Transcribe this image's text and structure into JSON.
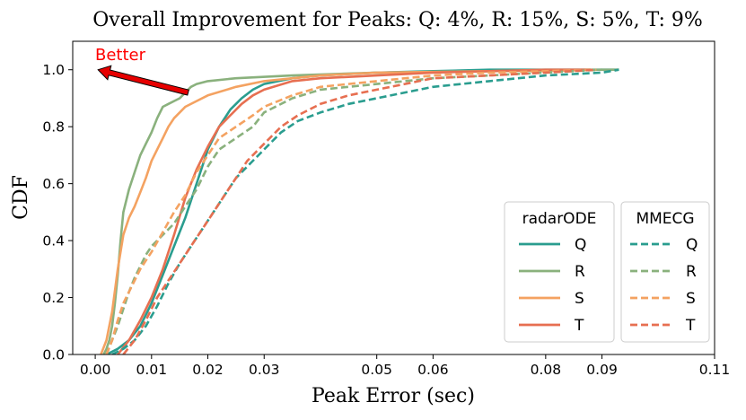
{
  "chart_data": {
    "type": "line",
    "title": "Overall Improvement for Peaks: Q: 4%, R: 15%, S: 5%, T: 9%",
    "xlabel": "Peak Error (sec)",
    "ylabel": "CDF",
    "xlim": [
      -0.004,
      0.11
    ],
    "ylim": [
      0.0,
      1.1
    ],
    "xticks": [
      0.0,
      0.01,
      0.02,
      0.03,
      0.05,
      0.06,
      0.08,
      0.09,
      0.11
    ],
    "xtick_labels": [
      "0.00",
      "0.01",
      "0.02",
      "0.03",
      "0.05",
      "0.06",
      "0.08",
      "0.09",
      "0.11"
    ],
    "yticks": [
      0.0,
      0.2,
      0.4,
      0.6,
      0.8,
      1.0
    ],
    "ytick_labels": [
      "0.0",
      "0.2",
      "0.4",
      "0.6",
      "0.8",
      "1.0"
    ],
    "grid": false,
    "annotation": {
      "text": "Better",
      "from": [
        0.0165,
        0.92
      ],
      "to": [
        0.0005,
        1.0
      ],
      "color": "#ff0000"
    },
    "legend_groups": [
      {
        "title": "radarODE",
        "style": "solid",
        "entries": [
          "Q",
          "R",
          "S",
          "T"
        ]
      },
      {
        "title": "MMECG",
        "style": "dashed",
        "entries": [
          "Q",
          "R",
          "S",
          "T"
        ]
      }
    ],
    "colors": {
      "Q": "#2a9d8f",
      "R": "#8ab17d",
      "S": "#f4a261",
      "T": "#e76f51"
    },
    "series": [
      {
        "name": "radarODE Q",
        "group": "radarODE",
        "peak": "Q",
        "dashed": false,
        "x": [
          0.002,
          0.004,
          0.006,
          0.008,
          0.01,
          0.012,
          0.014,
          0.016,
          0.018,
          0.02,
          0.022,
          0.024,
          0.026,
          0.028,
          0.03,
          0.035,
          0.04,
          0.05,
          0.06,
          0.07,
          0.08,
          0.093
        ],
        "y": [
          0.0,
          0.02,
          0.05,
          0.1,
          0.18,
          0.28,
          0.38,
          0.48,
          0.6,
          0.72,
          0.8,
          0.86,
          0.9,
          0.93,
          0.95,
          0.97,
          0.98,
          0.99,
          0.995,
          1.0,
          1.0,
          1.0
        ]
      },
      {
        "name": "radarODE R",
        "group": "radarODE",
        "peak": "R",
        "dashed": false,
        "x": [
          0.0015,
          0.002,
          0.0025,
          0.003,
          0.0035,
          0.004,
          0.0045,
          0.005,
          0.006,
          0.007,
          0.008,
          0.009,
          0.01,
          0.011,
          0.012,
          0.013,
          0.014,
          0.015,
          0.016,
          0.017,
          0.018,
          0.02,
          0.025,
          0.035,
          0.05,
          0.07,
          0.09,
          0.093
        ],
        "y": [
          0.0,
          0.02,
          0.05,
          0.1,
          0.18,
          0.28,
          0.4,
          0.5,
          0.58,
          0.64,
          0.7,
          0.74,
          0.78,
          0.83,
          0.87,
          0.88,
          0.89,
          0.9,
          0.92,
          0.94,
          0.95,
          0.96,
          0.97,
          0.98,
          0.99,
          0.995,
          1.0,
          1.0
        ]
      },
      {
        "name": "radarODE S",
        "group": "radarODE",
        "peak": "S",
        "dashed": false,
        "x": [
          0.001,
          0.002,
          0.003,
          0.004,
          0.005,
          0.006,
          0.007,
          0.008,
          0.009,
          0.01,
          0.011,
          0.012,
          0.013,
          0.014,
          0.015,
          0.016,
          0.018,
          0.02,
          0.025,
          0.03,
          0.04,
          0.05,
          0.07,
          0.088
        ],
        "y": [
          0.0,
          0.05,
          0.15,
          0.3,
          0.42,
          0.48,
          0.52,
          0.57,
          0.62,
          0.68,
          0.72,
          0.76,
          0.8,
          0.83,
          0.85,
          0.87,
          0.89,
          0.91,
          0.94,
          0.96,
          0.98,
          0.99,
          0.995,
          1.0
        ]
      },
      {
        "name": "radarODE T",
        "group": "radarODE",
        "peak": "T",
        "dashed": false,
        "x": [
          0.004,
          0.006,
          0.008,
          0.01,
          0.012,
          0.014,
          0.016,
          0.018,
          0.02,
          0.022,
          0.024,
          0.026,
          0.028,
          0.03,
          0.035,
          0.04,
          0.05,
          0.06,
          0.07,
          0.08,
          0.088
        ],
        "y": [
          0.0,
          0.05,
          0.12,
          0.2,
          0.3,
          0.42,
          0.55,
          0.65,
          0.73,
          0.8,
          0.84,
          0.88,
          0.91,
          0.93,
          0.96,
          0.97,
          0.98,
          0.99,
          0.995,
          1.0,
          1.0
        ]
      },
      {
        "name": "MMECG Q",
        "group": "MMECG",
        "peak": "Q",
        "dashed": true,
        "x": [
          0.003,
          0.005,
          0.007,
          0.009,
          0.011,
          0.013,
          0.015,
          0.017,
          0.019,
          0.021,
          0.023,
          0.025,
          0.027,
          0.03,
          0.033,
          0.036,
          0.04,
          0.045,
          0.05,
          0.055,
          0.06,
          0.07,
          0.08,
          0.09,
          0.093
        ],
        "y": [
          0.0,
          0.02,
          0.05,
          0.1,
          0.17,
          0.25,
          0.32,
          0.38,
          0.44,
          0.5,
          0.56,
          0.62,
          0.66,
          0.72,
          0.78,
          0.82,
          0.85,
          0.88,
          0.9,
          0.92,
          0.94,
          0.96,
          0.98,
          0.99,
          1.0
        ]
      },
      {
        "name": "MMECG R",
        "group": "MMECG",
        "peak": "R",
        "dashed": true,
        "x": [
          0.002,
          0.003,
          0.004,
          0.005,
          0.006,
          0.007,
          0.008,
          0.009,
          0.01,
          0.012,
          0.014,
          0.016,
          0.018,
          0.02,
          0.022,
          0.025,
          0.028,
          0.03,
          0.035,
          0.04,
          0.05,
          0.06,
          0.07,
          0.08,
          0.09
        ],
        "y": [
          0.0,
          0.05,
          0.1,
          0.16,
          0.22,
          0.27,
          0.31,
          0.35,
          0.38,
          0.42,
          0.46,
          0.52,
          0.58,
          0.66,
          0.72,
          0.76,
          0.8,
          0.85,
          0.9,
          0.93,
          0.95,
          0.97,
          0.98,
          0.99,
          1.0
        ]
      },
      {
        "name": "MMECG S",
        "group": "MMECG",
        "peak": "S",
        "dashed": true,
        "x": [
          0.002,
          0.003,
          0.004,
          0.005,
          0.006,
          0.007,
          0.008,
          0.009,
          0.01,
          0.012,
          0.014,
          0.016,
          0.018,
          0.02,
          0.022,
          0.025,
          0.028,
          0.03,
          0.035,
          0.04,
          0.05,
          0.06,
          0.07,
          0.08,
          0.089
        ],
        "y": [
          0.0,
          0.05,
          0.12,
          0.18,
          0.22,
          0.26,
          0.3,
          0.33,
          0.36,
          0.43,
          0.5,
          0.56,
          0.64,
          0.7,
          0.76,
          0.8,
          0.84,
          0.87,
          0.91,
          0.94,
          0.96,
          0.98,
          0.99,
          0.995,
          1.0
        ]
      },
      {
        "name": "MMECG T",
        "group": "MMECG",
        "peak": "T",
        "dashed": true,
        "x": [
          0.005,
          0.007,
          0.009,
          0.011,
          0.013,
          0.015,
          0.017,
          0.019,
          0.021,
          0.023,
          0.025,
          0.027,
          0.03,
          0.033,
          0.036,
          0.04,
          0.045,
          0.05,
          0.055,
          0.06,
          0.07,
          0.08,
          0.089
        ],
        "y": [
          0.0,
          0.05,
          0.12,
          0.2,
          0.26,
          0.32,
          0.38,
          0.44,
          0.5,
          0.56,
          0.62,
          0.68,
          0.74,
          0.8,
          0.84,
          0.88,
          0.91,
          0.93,
          0.95,
          0.97,
          0.98,
          0.99,
          1.0
        ]
      }
    ]
  }
}
